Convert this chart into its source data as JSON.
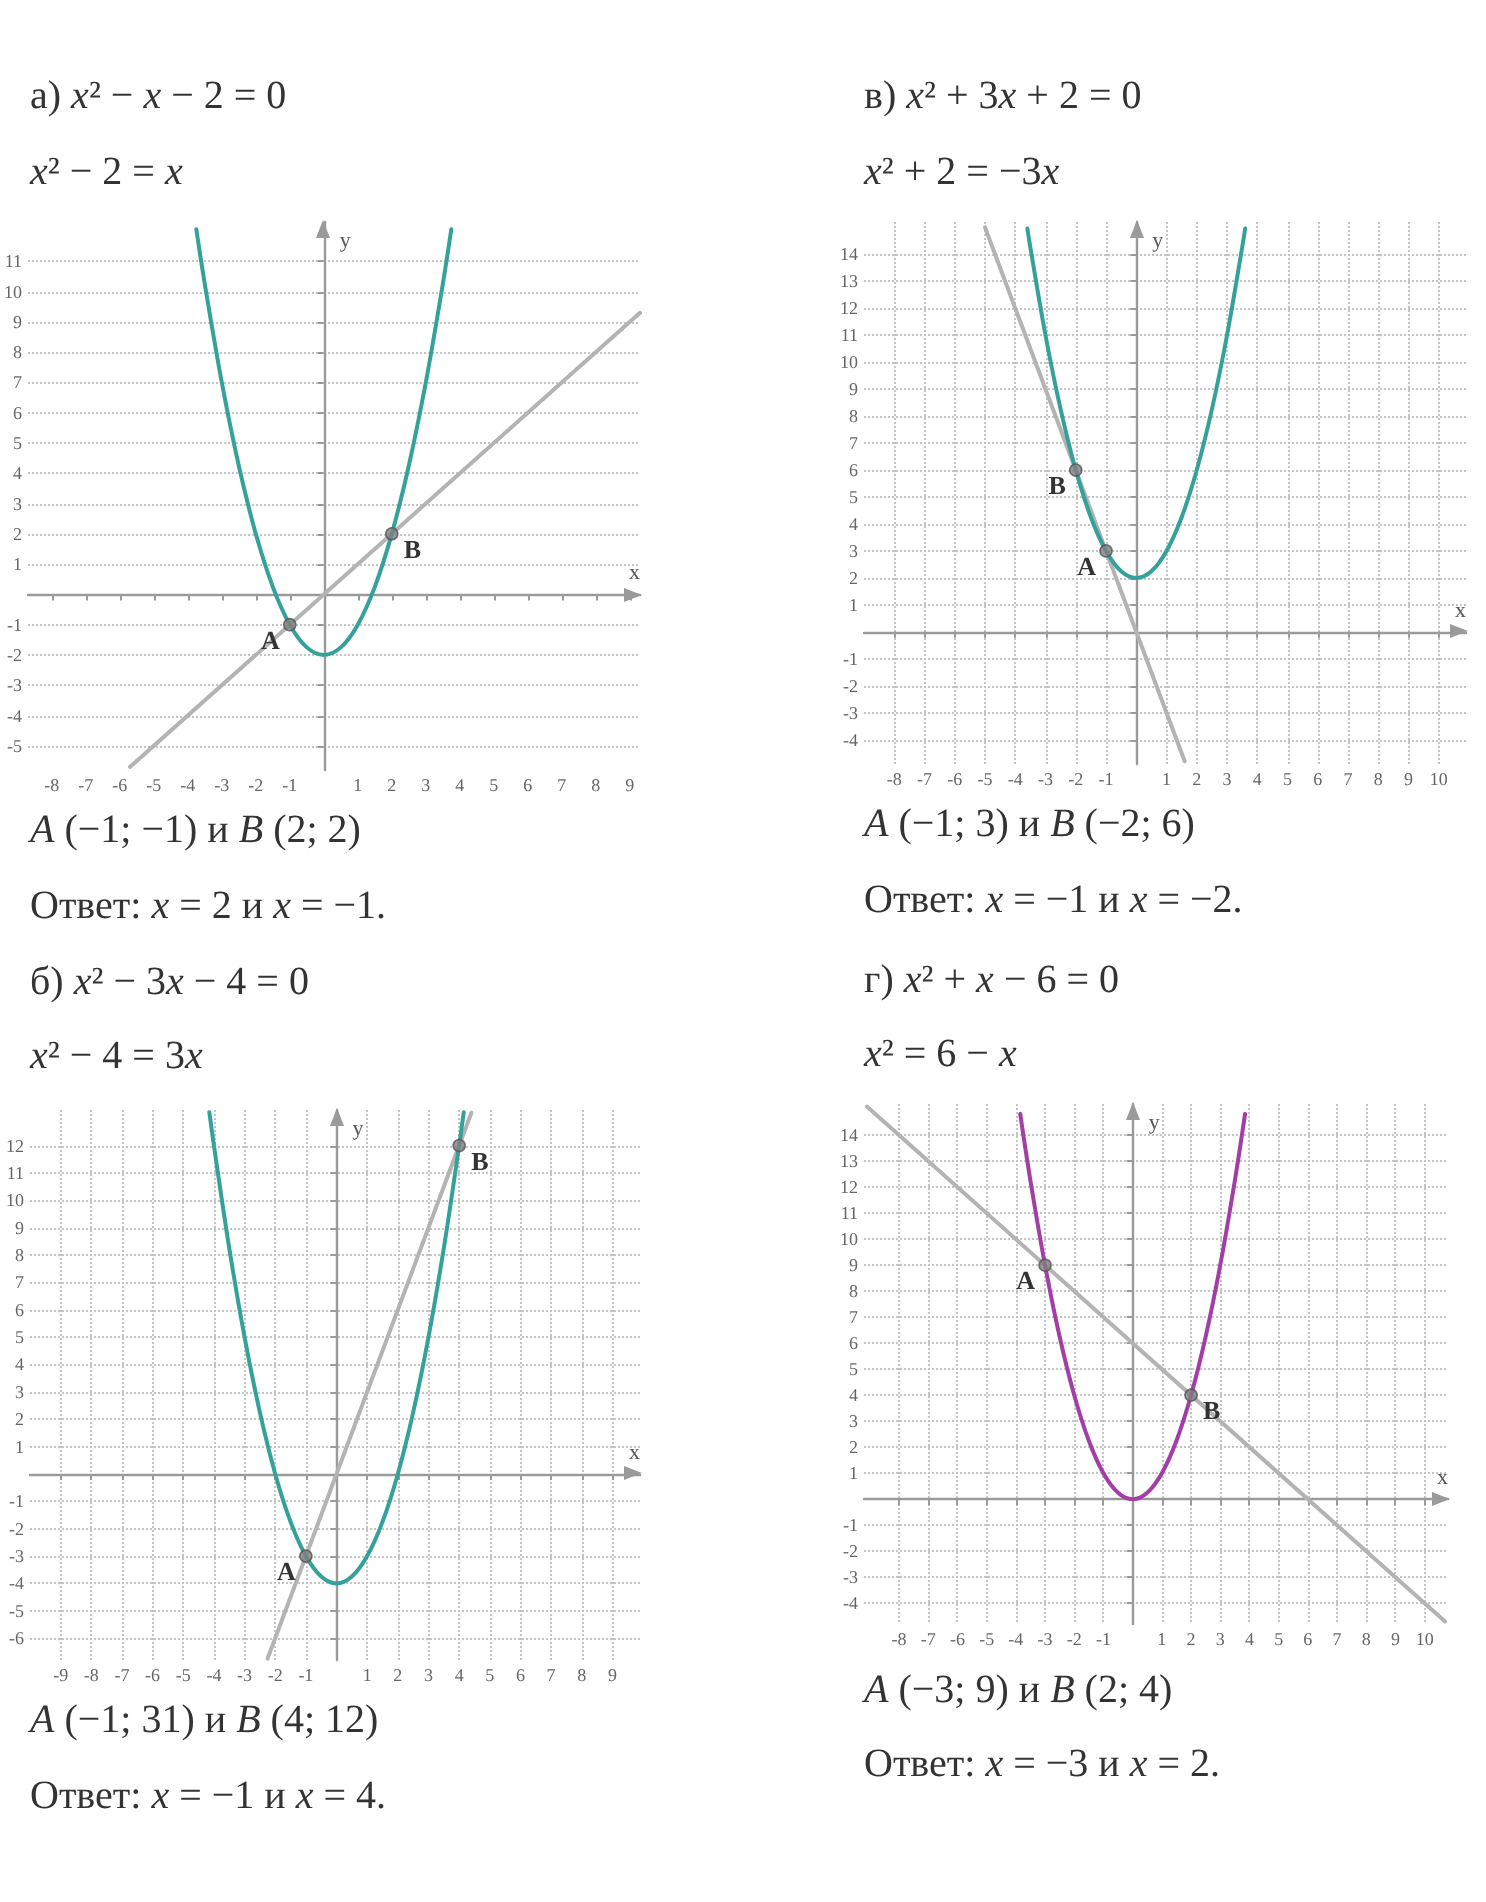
{
  "chart_data": [
    {
      "type": "line",
      "title": "а) x² − x − 2 = 0",
      "subtitle": "x² − 2 = x",
      "xlabel": "x",
      "ylabel": "y",
      "xlim": [
        -8.7,
        9.3
      ],
      "ylim": [
        -5.8,
        12.3
      ],
      "xticks": [
        -8,
        -7,
        -6,
        -5,
        -4,
        -3,
        -2,
        -1,
        1,
        2,
        3,
        4,
        5,
        6,
        7,
        8,
        9
      ],
      "yticks": [
        -5,
        -4,
        -3,
        -2,
        -1,
        1,
        2,
        3,
        4,
        5,
        6,
        7,
        8,
        9,
        10,
        11
      ],
      "grid": "y",
      "series": [
        {
          "color": "#b3b3b3",
          "x": [
            -5.7,
            9.3
          ],
          "values": [
            -5.7,
            9.3
          ]
        },
        {
          "color": "#35a19b",
          "x": [
            -3.75,
            -3.5,
            -3,
            -2.5,
            -2,
            -1.5,
            -1,
            -0.5,
            0,
            0.5,
            1,
            1.5,
            2,
            2.5,
            3,
            3.5,
            3.75
          ],
          "values": [
            12.06,
            10.25,
            7,
            4.25,
            2,
            0.25,
            -1,
            -1.75,
            -2,
            -1.75,
            -1,
            0.25,
            2,
            4.25,
            7,
            10.25,
            12.06
          ]
        },
        {
          "type": "scatter",
          "color": "#7f7f7f",
          "x": [
            -1,
            2
          ],
          "values": [
            -1,
            2
          ]
        }
      ],
      "annotations": [
        "A (−1; −1) и B (2; 2)",
        "Ответ: x = 2 и x = −1.",
        {
          "text": "A",
          "x": -1,
          "y": -1
        },
        {
          "text": "B",
          "x": 2,
          "y": 2
        }
      ]
    },
    {
      "type": "line",
      "title": "в) x² + 3x + 2 = 0",
      "subtitle": "x² + 2 = −3x",
      "xlabel": "x",
      "ylabel": "y",
      "xlim": [
        -9,
        10.9
      ],
      "ylim": [
        -4.9,
        15.2
      ],
      "xticks": [
        -8,
        -7,
        -6,
        -5,
        -4,
        -3,
        -2,
        -1,
        1,
        2,
        3,
        4,
        5,
        6,
        7,
        8,
        9,
        10
      ],
      "yticks": [
        -4,
        -3,
        -2,
        -1,
        1,
        2,
        3,
        4,
        5,
        6,
        7,
        8,
        9,
        10,
        11,
        12,
        13,
        14
      ],
      "grid": true,
      "series": [
        {
          "color": "#b3b3b3",
          "x": [
            -5,
            1.6
          ],
          "values": [
            15,
            -4.8
          ]
        },
        {
          "color": "#35a19b",
          "x": [
            -3.6,
            -3.5,
            -3,
            -2.5,
            -2,
            -1.5,
            -1,
            -0.5,
            0,
            0.5,
            1,
            1.5,
            2,
            2.5,
            3,
            3.5,
            3.6
          ],
          "values": [
            14.96,
            14.25,
            11,
            8.25,
            6,
            4.25,
            3,
            2.25,
            2,
            2.25,
            3,
            4.25,
            6,
            8.25,
            11,
            14.25,
            14.96
          ]
        },
        {
          "type": "scatter",
          "color": "#7f7f7f",
          "x": [
            -1,
            -2
          ],
          "values": [
            3,
            6
          ]
        }
      ],
      "annotations": [
        "A (−1; 3) и B (−2; 6)",
        "Ответ: x = −1 и x = −2.",
        {
          "text": "A",
          "x": -1,
          "y": 3
        },
        {
          "text": "B",
          "x": -2,
          "y": 6
        }
      ]
    },
    {
      "type": "line",
      "title": "б) x² − 3x − 4 = 0",
      "subtitle": "x² − 4 = 3x",
      "xlabel": "x",
      "ylabel": "y",
      "xlim": [
        -10,
        9.9
      ],
      "ylim": [
        -6.8,
        13.3
      ],
      "xticks": [
        -9,
        -8,
        -7,
        -6,
        -5,
        -4,
        -3,
        -2,
        -1,
        1,
        2,
        3,
        4,
        5,
        6,
        7,
        8,
        9
      ],
      "yticks": [
        -6,
        -5,
        -4,
        -3,
        -2,
        -1,
        1,
        2,
        3,
        4,
        5,
        6,
        7,
        8,
        9,
        10,
        11,
        12
      ],
      "grid": true,
      "series": [
        {
          "color": "#b3b3b3",
          "x": [
            -2.25,
            4.4
          ],
          "values": [
            -6.75,
            13.2
          ]
        },
        {
          "color": "#35a19b",
          "x": [
            -4.15,
            -4,
            -3.5,
            -3,
            -2.5,
            -2,
            -1.5,
            -1,
            -0.5,
            0,
            0.5,
            1,
            1.5,
            2,
            2.5,
            3,
            3.5,
            4,
            4.15
          ],
          "values": [
            13.22,
            12,
            8.25,
            5,
            2.25,
            0,
            -1.75,
            -3,
            -3.75,
            -4,
            -3.75,
            -3,
            -1.75,
            0,
            2.25,
            5,
            8.25,
            12,
            13.22
          ]
        },
        {
          "type": "scatter",
          "color": "#7f7f7f",
          "x": [
            -1,
            4
          ],
          "values": [
            -3,
            12
          ]
        }
      ],
      "annotations": [
        "A (−1; 31) и B (4; 12)",
        "Ответ: x = −1 и x = 4.",
        {
          "text": "A",
          "x": -1,
          "y": -3
        },
        {
          "text": "B",
          "x": 4,
          "y": 12
        }
      ]
    },
    {
      "type": "line",
      "title": "г) x² + x − 6 = 0",
      "subtitle": "x² = 6 − x",
      "xlabel": "x",
      "ylabel": "y",
      "xlim": [
        -9.2,
        10.8
      ],
      "ylim": [
        -4.8,
        15.2
      ],
      "xticks": [
        -8,
        -7,
        -6,
        -5,
        -4,
        -3,
        -2,
        -1,
        1,
        2,
        3,
        4,
        5,
        6,
        7,
        8,
        9,
        10
      ],
      "yticks": [
        -4,
        -3,
        -2,
        -1,
        1,
        2,
        3,
        4,
        5,
        6,
        7,
        8,
        9,
        10,
        11,
        12,
        13,
        14
      ],
      "grid": true,
      "series": [
        {
          "color": "#b3b3b3",
          "x": [
            -9.1,
            10.7
          ],
          "values": [
            15.1,
            -4.7
          ]
        },
        {
          "color": "#a23ea6",
          "x": [
            -3.85,
            -3.5,
            -3,
            -2.5,
            -2,
            -1.5,
            -1,
            -0.5,
            0,
            0.5,
            1,
            1.5,
            2,
            2.5,
            3,
            3.5,
            3.85
          ],
          "values": [
            14.82,
            12.25,
            9,
            6.25,
            4,
            2.25,
            1,
            0.25,
            0,
            0.25,
            1,
            2.25,
            4,
            6.25,
            9,
            12.25,
            14.82
          ]
        },
        {
          "type": "scatter",
          "color": "#7f7f7f",
          "x": [
            -3,
            2
          ],
          "values": [
            9,
            4
          ]
        }
      ],
      "annotations": [
        "A (−3; 9) и B (2; 4)",
        "Ответ: x = −3 и x = 2.",
        {
          "text": "A",
          "x": -3,
          "y": 9
        },
        {
          "text": "B",
          "x": 2,
          "y": 4
        }
      ]
    }
  ]
}
